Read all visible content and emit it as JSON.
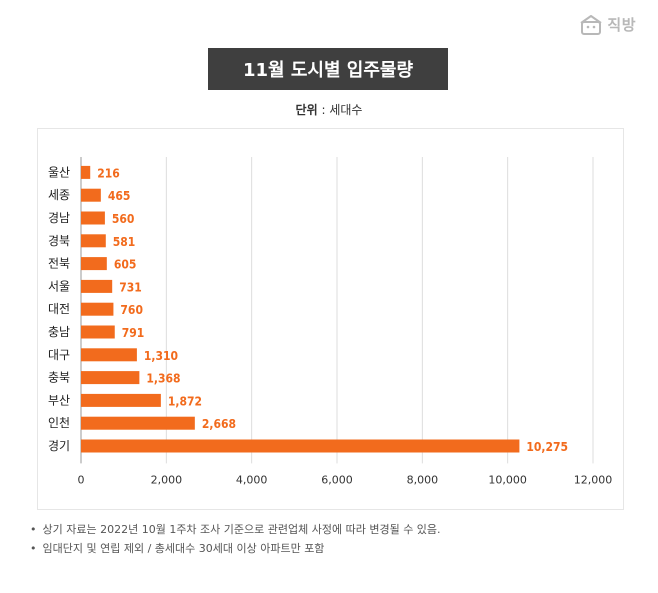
{
  "brand": {
    "name": "직방",
    "icon": "zigbang-house-icon",
    "color": "#b8b8b8"
  },
  "title": "11월 도시별 입주물량",
  "unit": {
    "label": "단위",
    "separator": " : ",
    "value": "세대수"
  },
  "notes": [
    "상기 자료는 2022년 10월 1주차 조사 기준으로 관련업체 사정에 따라 변경될 수 있음.",
    "임대단지 및 연립 제외 / 총세대수 30세대 이상 아파트만 포함"
  ],
  "note_bullet": "•",
  "colors": {
    "bar": "#f26b1d",
    "label": "#f26b1d",
    "grid": "#dddddd",
    "title_bg": "#3f3f3f"
  },
  "chart_data": {
    "type": "bar",
    "orientation": "horizontal",
    "title": "11월 도시별 입주물량",
    "xlabel": "",
    "ylabel": "",
    "categories": [
      "울산",
      "세종",
      "경남",
      "경북",
      "전북",
      "서울",
      "대전",
      "충남",
      "대구",
      "충북",
      "부산",
      "인천",
      "경기"
    ],
    "values": [
      216,
      465,
      560,
      581,
      605,
      731,
      760,
      791,
      1310,
      1368,
      1872,
      2668,
      10275
    ],
    "value_labels": [
      "216",
      "465",
      "560",
      "581",
      "605",
      "731",
      "760",
      "791",
      "1,310",
      "1,368",
      "1,872",
      "2,668",
      "10,275"
    ],
    "xlim": [
      0,
      12000
    ],
    "xticks": [
      0,
      2000,
      4000,
      6000,
      8000,
      10000,
      12000
    ],
    "xtick_labels": [
      "0",
      "2,000",
      "4,000",
      "6,000",
      "8,000",
      "10,000",
      "12,000"
    ],
    "grid": true
  }
}
